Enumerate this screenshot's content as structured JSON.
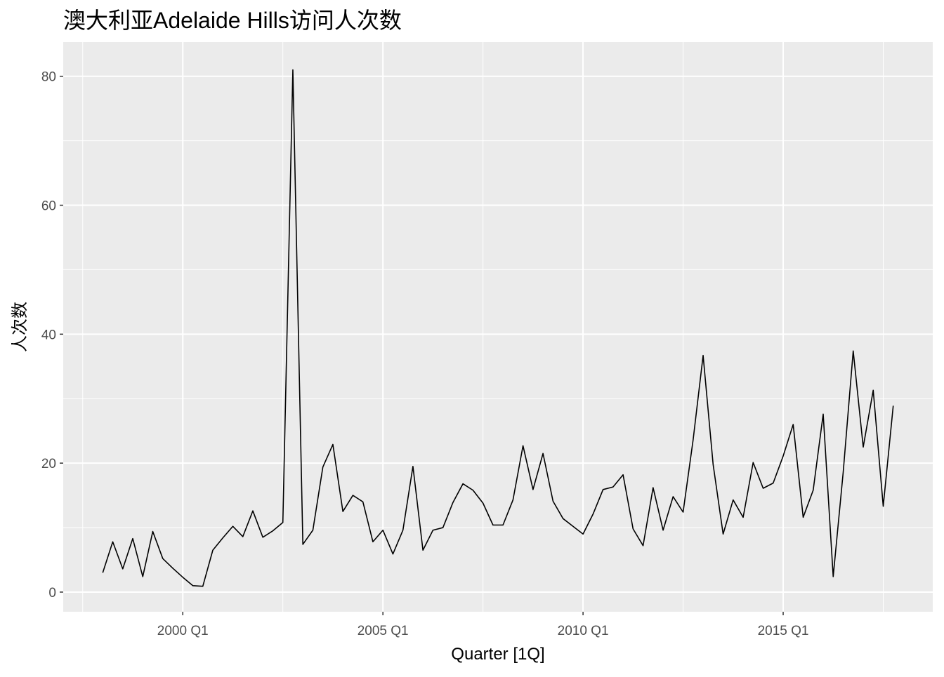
{
  "chart_data": {
    "type": "line",
    "title": "澳大利亚Adelaide Hills访问人次数",
    "x_label": "Quarter [1Q]",
    "y_label": "人次数",
    "x": [
      "1998 Q1",
      "1998 Q2",
      "1998 Q3",
      "1998 Q4",
      "1999 Q1",
      "1999 Q2",
      "1999 Q3",
      "1999 Q4",
      "2000 Q1",
      "2000 Q2",
      "2000 Q3",
      "2000 Q4",
      "2001 Q1",
      "2001 Q2",
      "2001 Q3",
      "2001 Q4",
      "2002 Q1",
      "2002 Q2",
      "2002 Q3",
      "2002 Q4",
      "2003 Q1",
      "2003 Q2",
      "2003 Q3",
      "2003 Q4",
      "2004 Q1",
      "2004 Q2",
      "2004 Q3",
      "2004 Q4",
      "2005 Q1",
      "2005 Q2",
      "2005 Q3",
      "2005 Q4",
      "2006 Q1",
      "2006 Q2",
      "2006 Q3",
      "2006 Q4",
      "2007 Q1",
      "2007 Q2",
      "2007 Q3",
      "2007 Q4",
      "2008 Q1",
      "2008 Q2",
      "2008 Q3",
      "2008 Q4",
      "2009 Q1",
      "2009 Q2",
      "2009 Q3",
      "2009 Q4",
      "2010 Q1",
      "2010 Q2",
      "2010 Q3",
      "2010 Q4",
      "2011 Q1",
      "2011 Q2",
      "2011 Q3",
      "2011 Q4",
      "2012 Q1",
      "2012 Q2",
      "2012 Q3",
      "2012 Q4",
      "2013 Q1",
      "2013 Q2",
      "2013 Q3",
      "2013 Q4",
      "2014 Q1",
      "2014 Q2",
      "2014 Q3",
      "2014 Q4",
      "2015 Q1",
      "2015 Q2",
      "2015 Q3",
      "2015 Q4",
      "2016 Q1",
      "2016 Q2",
      "2016 Q3",
      "2016 Q4",
      "2017 Q1",
      "2017 Q2",
      "2017 Q3",
      "2017 Q4"
    ],
    "values": [
      3.0,
      7.8,
      3.6,
      8.3,
      2.4,
      9.4,
      5.2,
      3.7,
      2.3,
      1.0,
      0.9,
      6.5,
      8.4,
      10.2,
      8.6,
      12.6,
      8.5,
      9.5,
      10.8,
      81.0,
      7.4,
      9.6,
      19.4,
      22.9,
      12.5,
      15.0,
      14.0,
      7.8,
      9.6,
      5.9,
      9.6,
      19.5,
      6.5,
      9.6,
      10.0,
      13.9,
      16.8,
      15.8,
      13.8,
      10.4,
      10.4,
      14.3,
      22.7,
      15.9,
      21.5,
      14.1,
      11.4,
      10.2,
      9.0,
      12.1,
      15.9,
      16.3,
      18.2,
      9.8,
      7.2,
      16.2,
      9.6,
      14.8,
      12.4,
      23.6,
      36.7,
      19.8,
      9.0,
      14.3,
      11.6,
      20.1,
      16.1,
      16.9,
      21.1,
      26.0,
      11.6,
      15.8,
      27.6,
      2.4,
      18.6,
      37.4,
      22.5,
      31.3,
      13.3,
      28.9
    ],
    "color": "#000000",
    "xticks": [
      "2000 Q1",
      "2005 Q1",
      "2010 Q1",
      "2015 Q1"
    ],
    "ylim": [
      -3.05,
      85.3
    ],
    "yticks": [
      0,
      20,
      40,
      60,
      80
    ],
    "grid": true
  }
}
